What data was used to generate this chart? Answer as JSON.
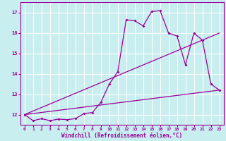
{
  "xlabel": "Windchill (Refroidissement éolien,°C)",
  "bg_color": "#c8eef0",
  "grid_color": "#b8dde0",
  "line_color": "#990099",
  "xlim": [
    -0.5,
    23.5
  ],
  "ylim": [
    11.5,
    17.5
  ],
  "yticks": [
    12,
    13,
    14,
    15,
    16,
    17
  ],
  "xticks": [
    0,
    1,
    2,
    3,
    4,
    5,
    6,
    7,
    8,
    9,
    10,
    11,
    12,
    13,
    14,
    15,
    16,
    17,
    18,
    19,
    20,
    21,
    22,
    23
  ],
  "curve1_x": [
    0,
    1,
    2,
    3,
    4,
    5,
    6,
    7,
    8,
    9,
    10,
    11,
    12,
    13,
    14,
    15,
    16,
    17,
    18,
    19,
    20,
    21,
    22,
    23
  ],
  "curve1_y": [
    12.0,
    11.7,
    11.8,
    11.7,
    11.78,
    11.75,
    11.8,
    12.05,
    12.1,
    12.6,
    13.5,
    14.1,
    16.65,
    16.6,
    16.35,
    17.05,
    17.1,
    16.0,
    15.85,
    14.45,
    16.0,
    15.65,
    13.5,
    13.2
  ],
  "curve2_x": [
    0,
    23
  ],
  "curve2_y": [
    12.0,
    13.2
  ],
  "curve3_x": [
    0,
    23
  ],
  "curve3_y": [
    12.0,
    16.0
  ]
}
